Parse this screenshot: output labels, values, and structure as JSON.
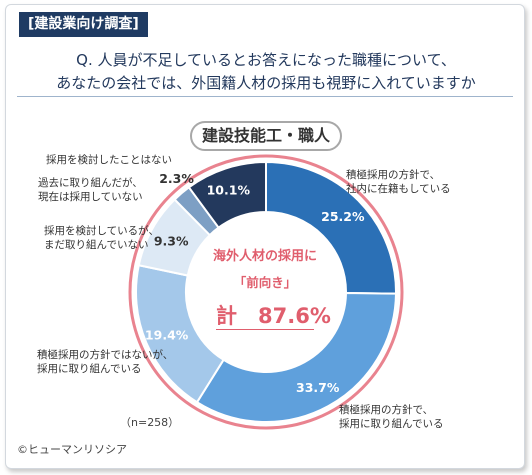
{
  "header": {
    "tag": "[建設業向け調査]",
    "question_line1": "Q. 人員が不足しているとお答えになった職種について、",
    "question_line2": "あなたの会社では、外国籍人材の採用も視野に入れていますか"
  },
  "category": "建設技能工・職人",
  "center": {
    "line1": "海外人材の採用に",
    "line2": "「前向き」",
    "total": "計　87.6%"
  },
  "sample": "（n=258）",
  "copyright": "©ヒューマンリソシア",
  "colors": {
    "ring": "#e9838f",
    "accent": "#e05e6d",
    "header_bg": "#1f3b63"
  },
  "chart_data": {
    "type": "pie",
    "subtype": "donut",
    "title": "建設技能工・職人",
    "slices": [
      {
        "name": "積極採用の方針で、社内に在籍もしている",
        "label": "積極採用の方針で、\n社内に在籍もしている",
        "value": 25.2,
        "value_label": "25.2%",
        "color": "#2b70b6"
      },
      {
        "name": "積極採用の方針で、採用に取り組んでいる",
        "label": "積極採用の方針で、\n採用に取り組んでいる",
        "value": 33.7,
        "value_label": "33.7%",
        "color": "#5fa0dc"
      },
      {
        "name": "積極採用の方針ではないが、採用に取り組んでいる",
        "label": "積極採用の方針ではないが、\n採用に取り組んでいる",
        "value": 19.4,
        "value_label": "19.4%",
        "color": "#a4c8ea"
      },
      {
        "name": "採用を検討しているが、まだ取り組んでいない",
        "label": "採用を検討しているが、\nまだ取り組んでいない",
        "value": 9.3,
        "value_label": "9.3%",
        "color": "#dde9f5"
      },
      {
        "name": "過去に取り組んだが、現在は採用していない",
        "label": "過去に取り組んだが、\n現在は採用していない",
        "value": 2.3,
        "value_label": "2.3%",
        "color": "#7d9fc4"
      },
      {
        "name": "採用を検討したことはない",
        "label": "採用を検討したことはない",
        "value": 10.1,
        "value_label": "10.1%",
        "color": "#23395d"
      }
    ]
  }
}
